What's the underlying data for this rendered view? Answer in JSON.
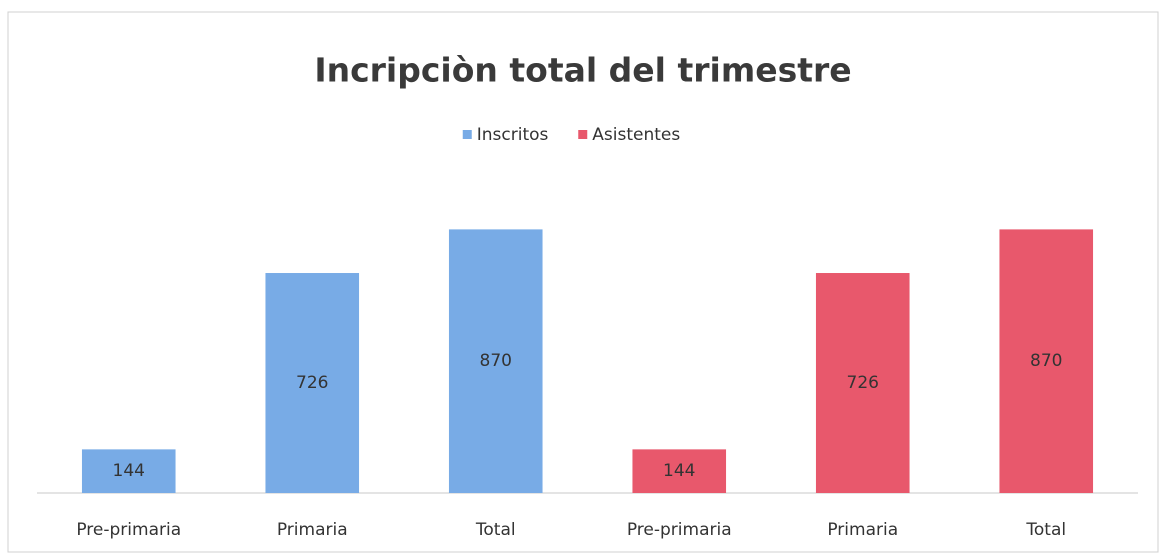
{
  "chart_data": {
    "type": "bar",
    "title": "Incripciòn total del trimestre",
    "categories": [
      "Pre-primaria",
      "Primaria",
      "Total",
      "Pre-primaria",
      "Primaria",
      "Total"
    ],
    "series": [
      {
        "name": "Inscritos",
        "color": "#78abe6",
        "values": [
          144,
          726,
          870,
          null,
          null,
          null
        ]
      },
      {
        "name": "Asistentes",
        "color": "#e8586c",
        "values": [
          null,
          null,
          null,
          144,
          726,
          870
        ]
      }
    ],
    "ylim": [
      0,
      1000
    ],
    "data_labels": true,
    "legend": "top"
  }
}
